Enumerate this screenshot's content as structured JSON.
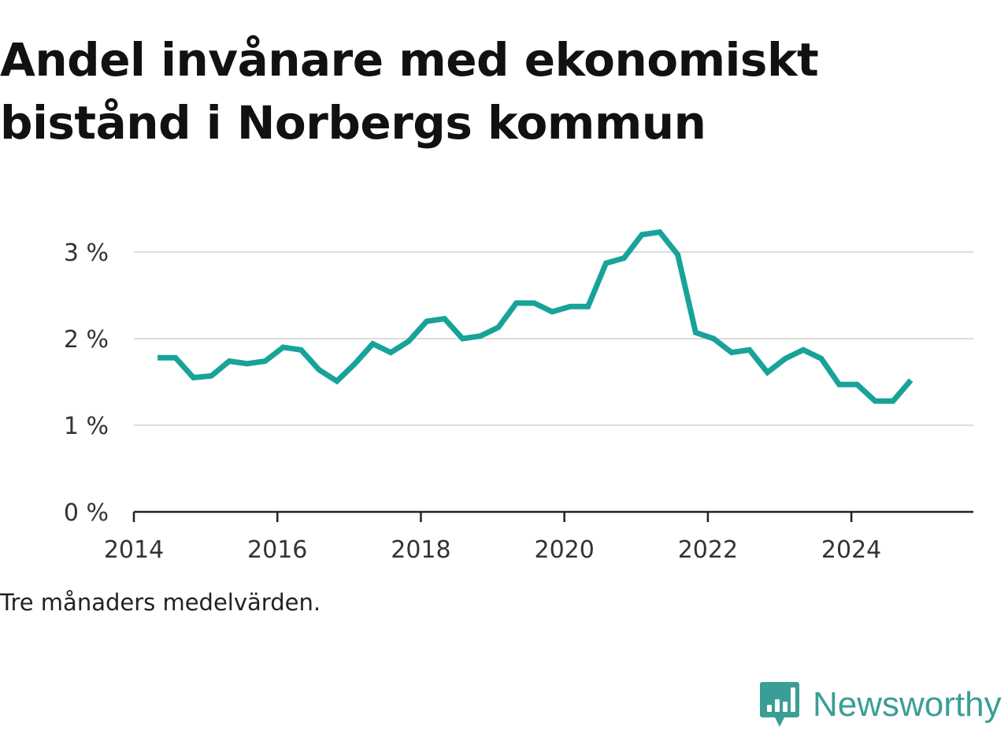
{
  "title": {
    "line1": "Andel invånare med ekonomiskt",
    "line2": "bistånd i Norbergs kommun"
  },
  "note": "Tre månaders medelvärden.",
  "brand": {
    "name": "Newsworthy",
    "icon": "bar-chart-speech-bubble-icon",
    "color": "#3a9e97"
  },
  "chart_data": {
    "type": "line",
    "title": "Andel invånare med ekonomiskt bistånd i Norbergs kommun",
    "xlabel": "",
    "ylabel": "",
    "y_unit": "%",
    "xlim": [
      2014,
      2025.7
    ],
    "ylim": [
      0,
      3.3
    ],
    "grid": true,
    "legend": "none",
    "x_ticks": [
      2014,
      2016,
      2018,
      2020,
      2022,
      2024
    ],
    "x_tick_labels": [
      "2014",
      "2016",
      "2018",
      "2020",
      "2022",
      "2024"
    ],
    "y_ticks": [
      0,
      1,
      2,
      3
    ],
    "y_tick_labels": [
      "0 %",
      "1 %",
      "2 %",
      "3 %"
    ],
    "series": [
      {
        "color": "#17a399",
        "x": [
          2014.33,
          2014.58,
          2014.83,
          2015.08,
          2015.33,
          2015.58,
          2015.83,
          2016.08,
          2016.33,
          2016.58,
          2016.83,
          2017.08,
          2017.33,
          2017.58,
          2017.83,
          2018.08,
          2018.33,
          2018.58,
          2018.83,
          2019.08,
          2019.33,
          2019.58,
          2019.83,
          2020.08,
          2020.33,
          2020.58,
          2020.83,
          2021.08,
          2021.33,
          2021.58,
          2021.83,
          2022.08,
          2022.33,
          2022.58,
          2022.83,
          2023.08,
          2023.33,
          2023.58,
          2023.83,
          2024.08,
          2024.33,
          2024.58,
          2024.83
        ],
        "values": [
          1.78,
          1.78,
          1.55,
          1.57,
          1.74,
          1.71,
          1.74,
          1.9,
          1.87,
          1.64,
          1.51,
          1.71,
          1.94,
          1.84,
          1.97,
          2.2,
          2.23,
          2.0,
          2.03,
          2.13,
          2.41,
          2.41,
          2.31,
          2.37,
          2.37,
          2.87,
          2.93,
          3.2,
          3.23,
          2.97,
          2.07,
          2.0,
          1.84,
          1.87,
          1.61,
          1.77,
          1.87,
          1.77,
          1.47,
          1.47,
          1.28,
          1.28,
          1.52
        ]
      }
    ]
  }
}
